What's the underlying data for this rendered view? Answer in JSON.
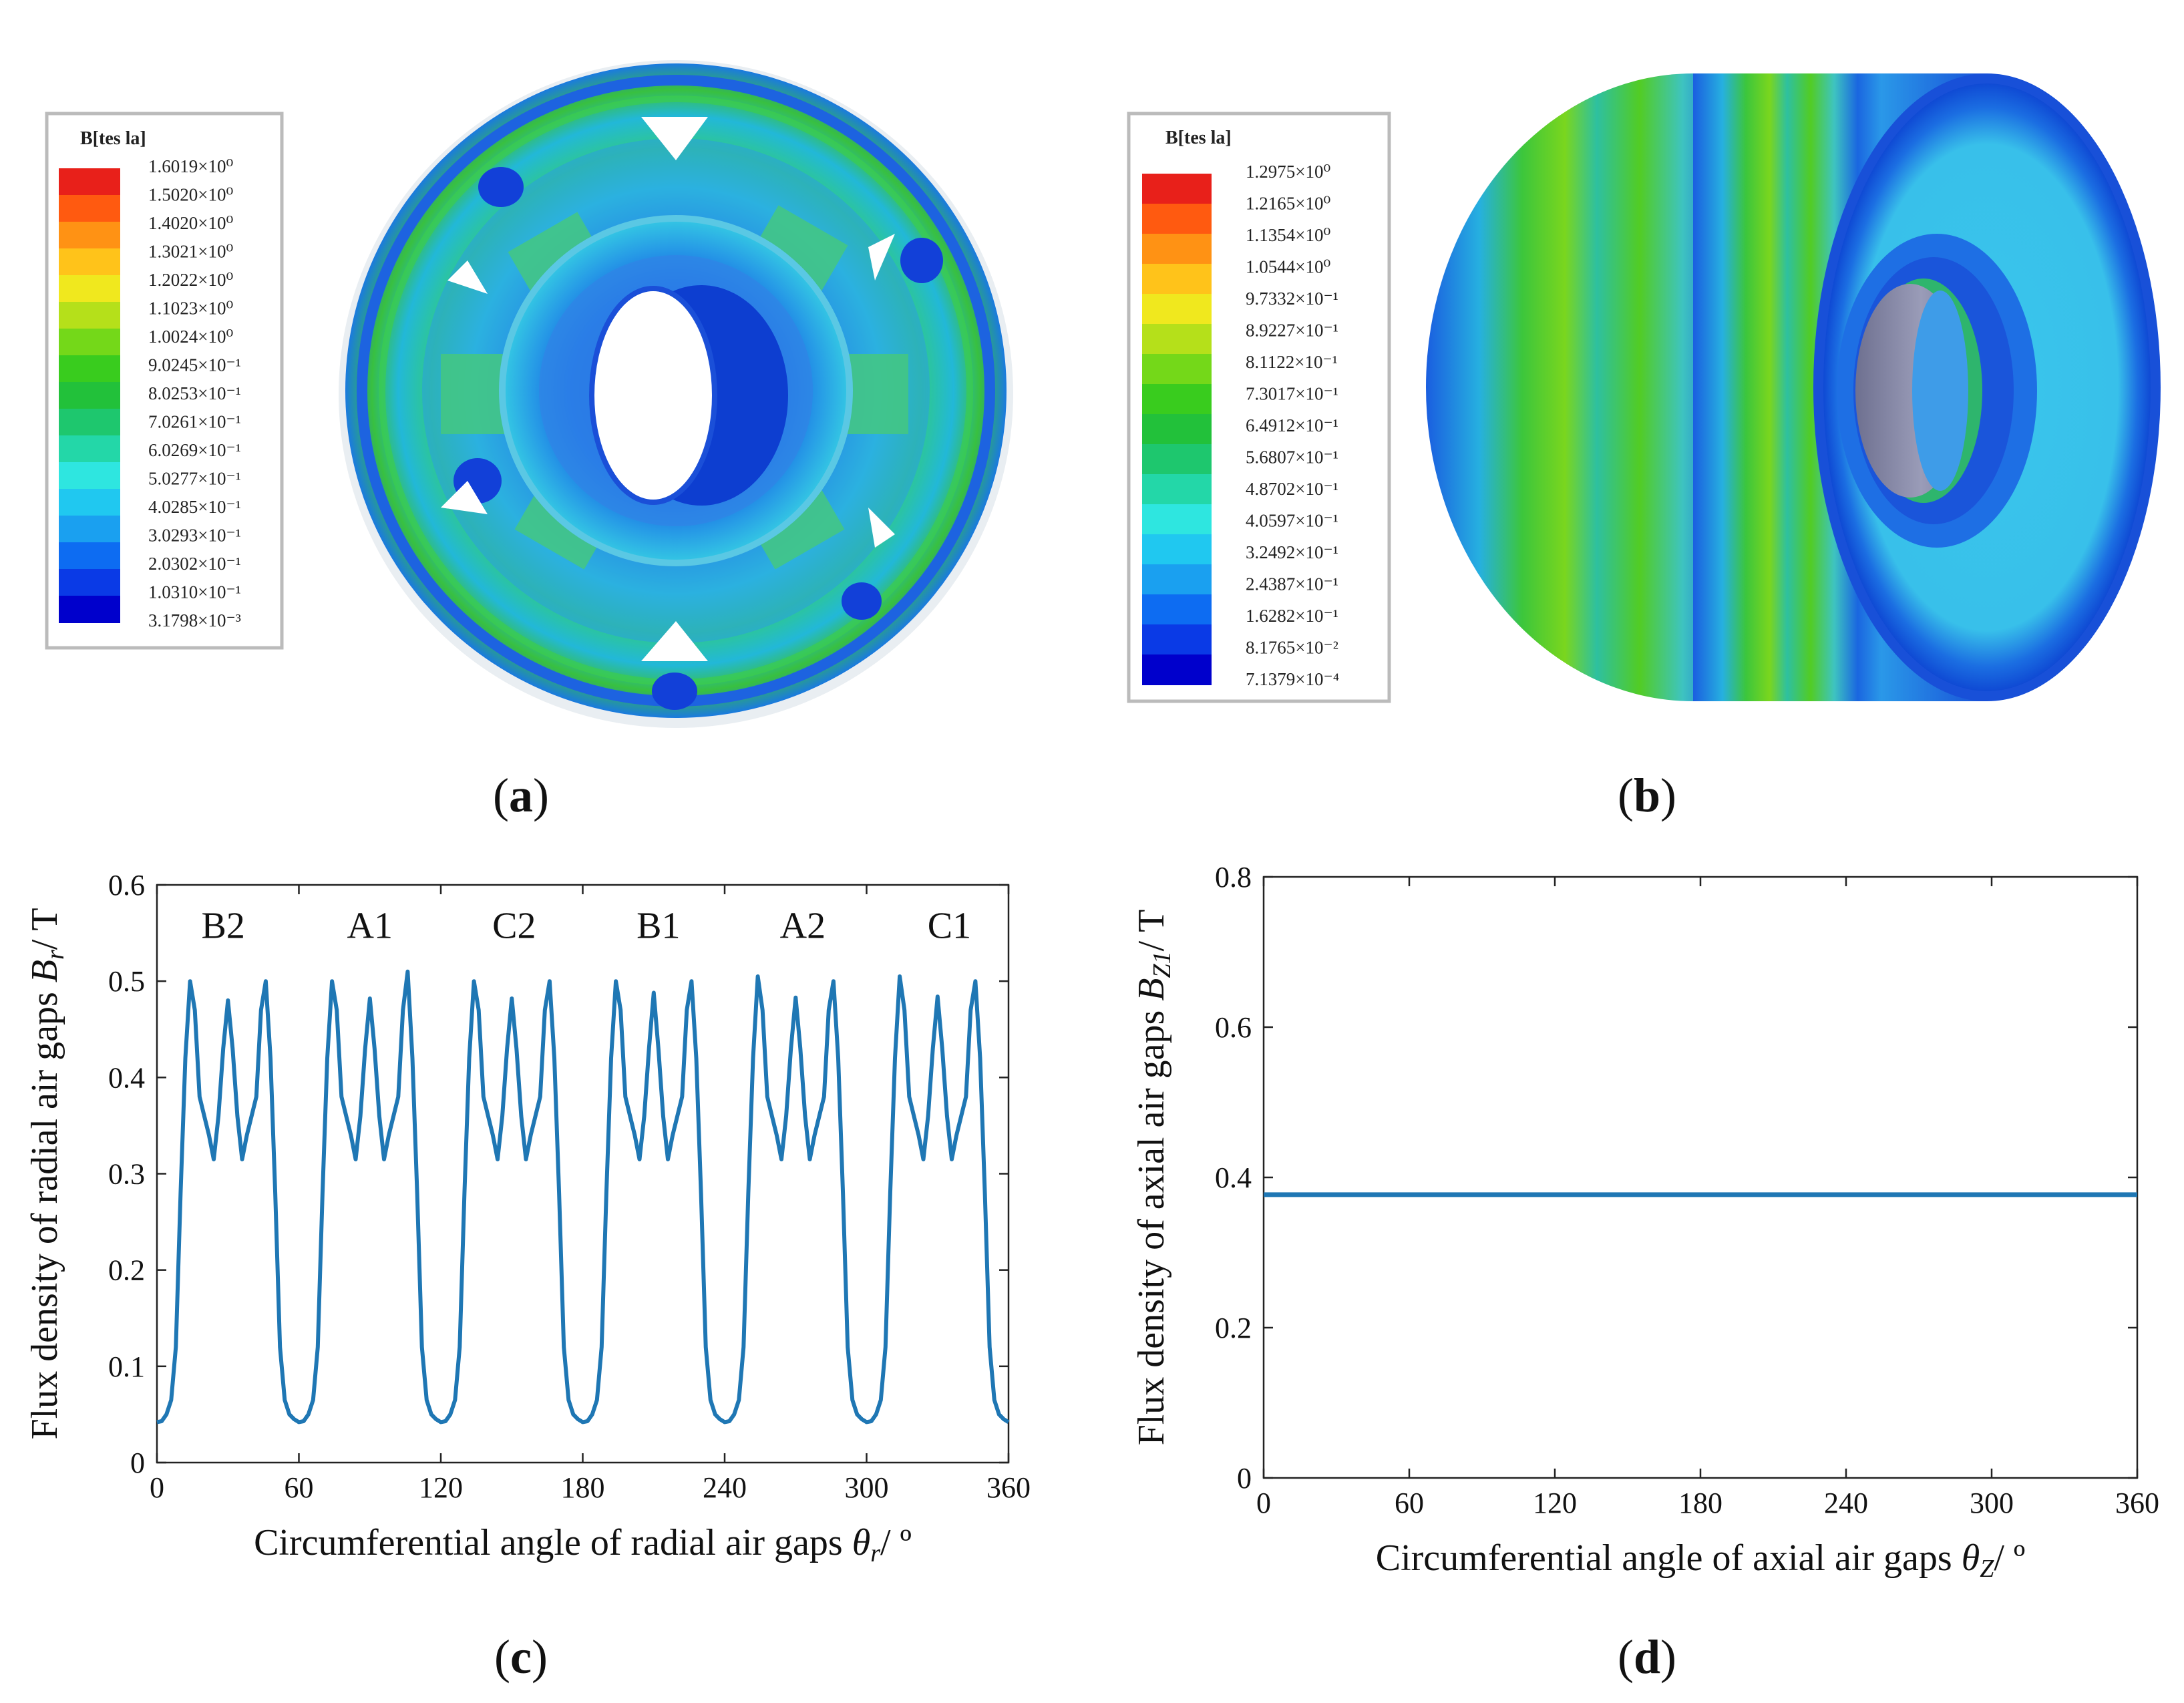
{
  "colors": {
    "line": "#1f77b4",
    "scale": [
      "#0000cc",
      "#0a3ae6",
      "#0d6cf2",
      "#1aa0f0",
      "#20c8f0",
      "#2ee6e0",
      "#23d7a8",
      "#1ec76e",
      "#22c13a",
      "#39cc1e",
      "#74d819",
      "#b5e01a",
      "#f0e81e",
      "#ffc31a",
      "#ff9214",
      "#ff5a10",
      "#e8201a"
    ]
  },
  "panel_a": {
    "caption_letter": "a",
    "legend_title": "B[tes la]",
    "legend_values": [
      "1.6019×10⁰",
      "1.5020×10⁰",
      "1.4020×10⁰",
      "1.3021×10⁰",
      "1.2022×10⁰",
      "1.1023×10⁰",
      "1.0024×10⁰",
      "9.0245×10⁻¹",
      "8.0253×10⁻¹",
      "7.0261×10⁻¹",
      "6.0269×10⁻¹",
      "5.0277×10⁻¹",
      "4.0285×10⁻¹",
      "3.0293×10⁻¹",
      "2.0302×10⁻¹",
      "1.0310×10⁻¹",
      "3.1798×10⁻³"
    ]
  },
  "panel_b": {
    "caption_letter": "b",
    "legend_title": "B[tes la]",
    "legend_values": [
      "1.2975×10⁰",
      "1.2165×10⁰",
      "1.1354×10⁰",
      "1.0544×10⁰",
      "9.7332×10⁻¹",
      "8.9227×10⁻¹",
      "8.1122×10⁻¹",
      "7.3017×10⁻¹",
      "6.4912×10⁻¹",
      "5.6807×10⁻¹",
      "4.8702×10⁻¹",
      "4.0597×10⁻¹",
      "3.2492×10⁻¹",
      "2.4387×10⁻¹",
      "1.6282×10⁻¹",
      "8.1765×10⁻²",
      "7.1379×10⁻⁴"
    ]
  },
  "chart_data": [
    {
      "id": "c",
      "type": "line",
      "caption_letter": "c",
      "xlabel_prefix": "Circumferential angle of radial air gaps ",
      "xlabel_symbol": "θ",
      "xlabel_sub": "r",
      "xlabel_suffix": "/ º",
      "ylabel_prefix": "Flux density of radial air gaps ",
      "ylabel_symbol": "B",
      "ylabel_sub": "r",
      "ylabel_suffix": "/ T",
      "xlim": [
        0,
        360
      ],
      "ylim": [
        0,
        0.6
      ],
      "xticks": [
        "0",
        "60",
        "120",
        "180",
        "240",
        "300",
        "360"
      ],
      "yticks": [
        "0",
        "0.1",
        "0.2",
        "0.3",
        "0.4",
        "0.5",
        "0.6"
      ],
      "peak_labels": [
        {
          "text": "B2",
          "x": 28
        },
        {
          "text": "A1",
          "x": 90
        },
        {
          "text": "C2",
          "x": 151
        },
        {
          "text": "B1",
          "x": 212
        },
        {
          "text": "A2",
          "x": 273
        },
        {
          "text": "C1",
          "x": 335
        }
      ],
      "period_shape": [
        [
          0,
          0.042
        ],
        [
          2,
          0.043
        ],
        [
          4,
          0.05
        ],
        [
          6,
          0.065
        ],
        [
          8,
          0.12
        ],
        [
          10,
          0.28
        ],
        [
          12,
          0.42
        ],
        [
          14,
          0.5
        ],
        [
          16,
          0.47
        ],
        [
          18,
          0.38
        ],
        [
          20,
          0.36
        ],
        [
          22,
          0.34
        ],
        [
          24,
          0.315
        ],
        [
          26,
          0.36
        ],
        [
          28,
          0.43
        ],
        [
          30,
          0.478
        ],
        [
          32,
          0.43
        ],
        [
          34,
          0.36
        ],
        [
          36,
          0.315
        ],
        [
          38,
          0.34
        ],
        [
          40,
          0.36
        ],
        [
          42,
          0.38
        ],
        [
          44,
          0.47
        ],
        [
          46,
          0.5
        ],
        [
          48,
          0.42
        ],
        [
          50,
          0.28
        ],
        [
          52,
          0.12
        ],
        [
          54,
          0.065
        ],
        [
          56,
          0.05
        ],
        [
          58,
          0.045
        ],
        [
          60,
          0.042
        ]
      ],
      "peak_heights": [
        [
          0.5,
          0.48,
          0.5
        ],
        [
          0.5,
          0.482,
          0.51
        ],
        [
          0.5,
          0.482,
          0.5
        ],
        [
          0.5,
          0.488,
          0.5
        ],
        [
          0.505,
          0.483,
          0.5
        ],
        [
          0.505,
          0.484,
          0.5
        ]
      ]
    },
    {
      "id": "d",
      "type": "line",
      "caption_letter": "d",
      "xlabel_prefix": "Circumferential angle of axial air gaps ",
      "xlabel_symbol": "θ",
      "xlabel_sub": "Z",
      "xlabel_suffix": "/ º",
      "ylabel_prefix": "Flux density of axial air gaps ",
      "ylabel_symbol": "B",
      "ylabel_sub": "Z1",
      "ylabel_suffix": "/ T",
      "xlim": [
        0,
        360
      ],
      "ylim": [
        0,
        0.8
      ],
      "xticks": [
        "0",
        "60",
        "120",
        "180",
        "240",
        "300",
        "360"
      ],
      "yticks": [
        "0",
        "0.2",
        "0.4",
        "0.6",
        "0.8"
      ],
      "x": [
        0,
        360
      ],
      "y": [
        0.377,
        0.377
      ]
    }
  ]
}
